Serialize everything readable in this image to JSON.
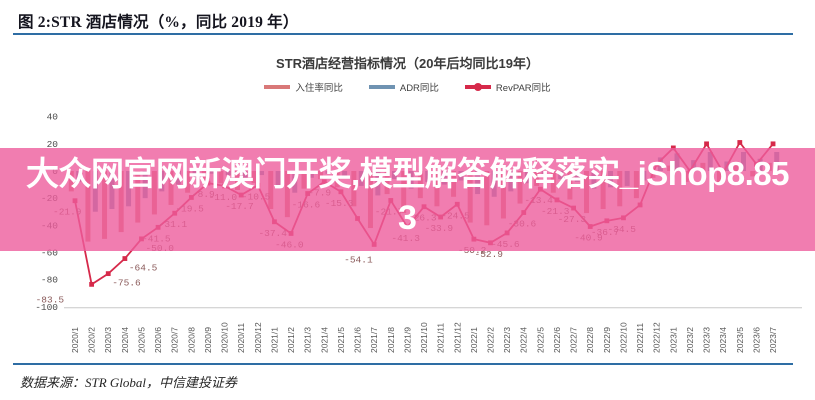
{
  "page": {
    "figure_title": "图 2:STR 酒店情况（%，同比 2019 年）",
    "source_note": "数据来源：STR Global，中信建投证券"
  },
  "watermark": {
    "line1": "大众网官网新澳门开奖,模型解答解释落实_iShop8.85",
    "line2": "3"
  },
  "colors": {
    "rule_blue": "#2e6da4",
    "watermark_bg": "#ee5c9ccc",
    "watermark_text": "#ffffff",
    "occupancy_bar": "#d97878",
    "adr_bar": "#6f93b2",
    "revpar_line": "#d6294a",
    "data_label": "#8a5a5a"
  },
  "chart_data": {
    "type": "line",
    "title": "STR酒店经营指标情况（20年后均同比19年）",
    "xlabel": "",
    "ylabel": "",
    "ylim": [
      -100,
      40
    ],
    "yticks": [
      40,
      20,
      0,
      -20,
      -40,
      -60,
      -80,
      -100
    ],
    "grid": false,
    "legend_position": "top",
    "categories": [
      "2020/1",
      "2020/2",
      "2020/3",
      "2020/4",
      "2020/5",
      "2020/6",
      "2020/7",
      "2020/8",
      "2020/9",
      "2020/10",
      "2020/11",
      "2020/12",
      "2021/1",
      "2021/2",
      "2021/3",
      "2021/4",
      "2021/5",
      "2021/6",
      "2021/7",
      "2021/8",
      "2021/9",
      "2021/10",
      "2021/11",
      "2021/12",
      "2022/1",
      "2022/2",
      "2022/3",
      "2022/4",
      "2022/5",
      "2022/6",
      "2022/7",
      "2022/8",
      "2022/9",
      "2022/10",
      "2022/11",
      "2022/12",
      "2023/1",
      "2023/2",
      "2023/3",
      "2023/4",
      "2023/5",
      "2023/6",
      "2023/7"
    ],
    "series": [
      {
        "name": "入住率同比",
        "style": "bar",
        "color": "#d97878",
        "values": [
          -15,
          -52,
          -50,
          -45,
          -38,
          -32,
          -25,
          -16,
          -8,
          -9,
          -14,
          -9,
          -28,
          -34,
          -13,
          -6,
          -12,
          -26,
          -42,
          -17,
          -31,
          -20,
          -26,
          -19,
          -38,
          -40,
          -35,
          -24,
          -11,
          -16,
          -21,
          -31,
          -28,
          -26,
          -20,
          -5,
          4,
          -8,
          6,
          -9,
          7,
          -4,
          6
        ]
      },
      {
        "name": "ADR同比",
        "style": "bar",
        "color": "#6f93b2",
        "values": [
          -8,
          -30,
          -28,
          -26,
          -20,
          -15,
          -10,
          -5,
          -2,
          -3,
          -5,
          -3,
          -12,
          -16,
          -5,
          -2,
          -4,
          -11,
          -18,
          -6,
          -13,
          -8,
          -10,
          -7,
          -17,
          -19,
          -15,
          -9,
          -3,
          -6,
          -8,
          -13,
          -12,
          -11,
          -7,
          10,
          13,
          8,
          14,
          7,
          14,
          9,
          14
        ]
      },
      {
        "name": "RevPAR同比",
        "style": "line",
        "color": "#d6294a",
        "values": [
          -21.9,
          -83.5,
          -75.6,
          -64.5,
          -50.0,
          -41.5,
          -31.1,
          -19.5,
          -8.9,
          -11.0,
          -17.7,
          -10.5,
          -37.4,
          -46.0,
          -16.6,
          -7.9,
          -15.3,
          -35,
          -54.1,
          -21.7,
          -41.3,
          -26.3,
          -33.9,
          -24.5,
          -50.2,
          -52.9,
          -45.6,
          -30.6,
          -13.4,
          -21.3,
          -27.3,
          -40.9,
          -36.7,
          -34.5,
          -25,
          5,
          17,
          0,
          20,
          -1.2,
          21,
          5,
          20
        ],
        "labels": [
          "-21.9",
          "-83.5",
          "-75.6",
          "-64.5",
          "-50.0",
          "-41.5",
          "-31.1",
          "-19.5",
          "-8.9",
          "-11.0",
          "-17.7",
          "-10.5",
          "-37.4",
          "-46.0",
          "-16.6",
          "-7.9",
          "-15.3",
          null,
          "-54.1",
          "-21.7",
          "-41.3",
          "-26.3",
          "-33.9",
          "-24.5",
          "-50.2",
          "-52.9",
          "-45.6",
          "-30.6",
          "-13.4",
          "-21.3",
          "-27.3",
          "-40.9",
          "-36.7",
          "-34.5",
          null,
          null,
          null,
          null,
          null,
          null,
          null,
          null,
          null
        ]
      }
    ]
  }
}
